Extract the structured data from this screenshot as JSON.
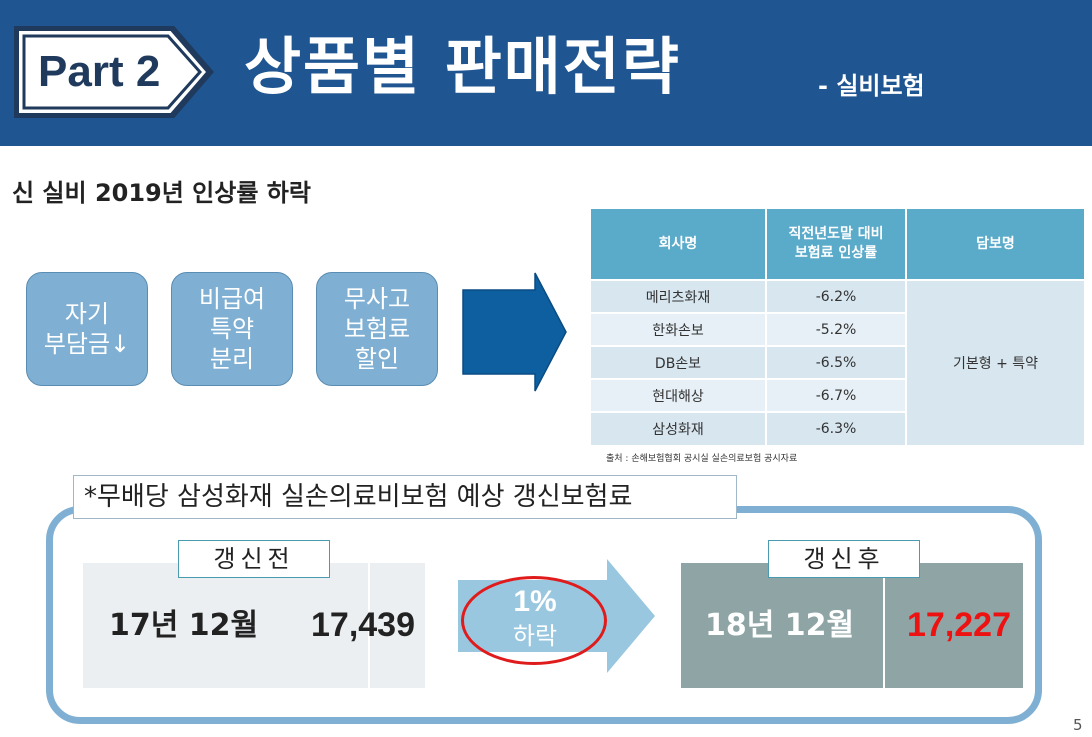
{
  "header": {
    "badge": "Part 2",
    "title": "상품별 판매전략",
    "subtitle": "- 실비보험",
    "colors": {
      "band": "#1f5590",
      "badge_border": "#1f3a5c"
    }
  },
  "section_title": "신 실비 2019년 인상률 하락",
  "features": [
    {
      "line1": "자기",
      "line2": "부담금↓",
      "line3": ""
    },
    {
      "line1": "비급여",
      "line2": "특약",
      "line3": "분리"
    },
    {
      "line1": "무사고",
      "line2": "보험료",
      "line3": "할인"
    }
  ],
  "rate_table": {
    "headers": [
      "회사명",
      "직전년도말 대비",
      "보험료 인상률",
      "담보명"
    ],
    "rows": [
      {
        "company": "메리츠화재",
        "rate": "-6.2%"
      },
      {
        "company": "한화손보",
        "rate": "-5.2%"
      },
      {
        "company": "DB손보",
        "rate": "-6.5%"
      },
      {
        "company": "현대해상",
        "rate": "-6.7%"
      },
      {
        "company": "삼성화재",
        "rate": "-6.3%"
      }
    ],
    "coverage": "기본형 + 특약",
    "source": "출처 : 손해보험협회 공시실 실손의료보험 공시자료"
  },
  "renewal": {
    "caption": "*무배당 삼성화재 실손의료비보험 예상 갱신보험료",
    "before": {
      "tag": "갱신전",
      "date": "17년 12월",
      "value": "17,439"
    },
    "after": {
      "tag": "갱신후",
      "date": "18년 12월",
      "value": "17,227",
      "value_color": "#ee1111"
    },
    "change": {
      "percent": "1%",
      "word": "하락"
    }
  },
  "page_number": "5"
}
